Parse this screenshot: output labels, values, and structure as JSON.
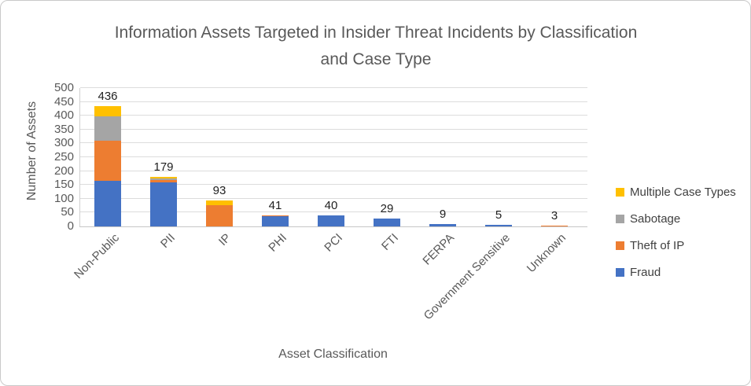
{
  "chart_data": {
    "type": "bar",
    "stacked": true,
    "title": "Information Assets Targeted in Insider Threat Incidents by Classification and Case Type",
    "xlabel": "Asset Classification",
    "ylabel": "Number of Assets",
    "ylim": [
      0,
      500
    ],
    "ytick_step": 50,
    "grid": true,
    "legend_position": "right",
    "categories": [
      "Non-Public",
      "PII",
      "IP",
      "PHI",
      "PCI",
      "FTI",
      "FERPA",
      "Government Sensitive",
      "Unknown"
    ],
    "totals": [
      436,
      179,
      93,
      41,
      40,
      29,
      9,
      5,
      3
    ],
    "series": [
      {
        "name": "Fraud",
        "color": "#4472C4",
        "values": [
          165,
          158,
          0,
          36,
          40,
          29,
          9,
          5,
          0
        ]
      },
      {
        "name": "Theft of IP",
        "color": "#ED7D31",
        "values": [
          145,
          9,
          78,
          3,
          0,
          0,
          0,
          0,
          3
        ]
      },
      {
        "name": "Sabotage",
        "color": "#A5A5A5",
        "values": [
          88,
          6,
          0,
          0,
          0,
          0,
          0,
          0,
          0
        ]
      },
      {
        "name": "Multiple Case Types",
        "color": "#FFC000",
        "values": [
          38,
          6,
          15,
          2,
          0,
          0,
          0,
          0,
          0
        ]
      }
    ],
    "legend_order": [
      "Multiple Case Types",
      "Sabotage",
      "Theft of IP",
      "Fraud"
    ]
  }
}
